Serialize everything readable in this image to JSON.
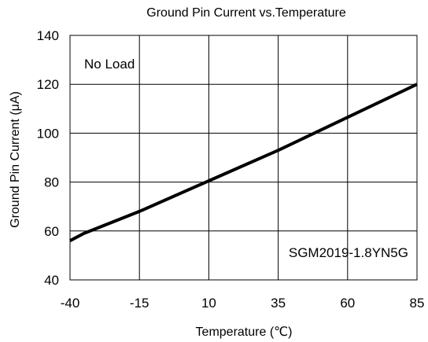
{
  "chart_data": {
    "type": "line",
    "title": "Ground Pin Current vs.Temperature",
    "xlabel": "Temperature (℃)",
    "ylabel": "Ground Pin Current (μA)",
    "xlim": [
      -40,
      85
    ],
    "ylim": [
      40,
      140
    ],
    "x_ticks": [
      -40,
      -15,
      10,
      35,
      60,
      85
    ],
    "y_ticks": [
      40,
      60,
      80,
      100,
      120,
      140
    ],
    "grid": true,
    "annotations": {
      "condition": "No Load",
      "part_number": "SGM2019-1.8YN5G"
    },
    "series": [
      {
        "x": [
          -40,
          -35,
          -15,
          10,
          35,
          60,
          85
        ],
        "y": [
          56,
          59,
          68,
          80.5,
          93,
          106.5,
          120
        ]
      }
    ]
  }
}
